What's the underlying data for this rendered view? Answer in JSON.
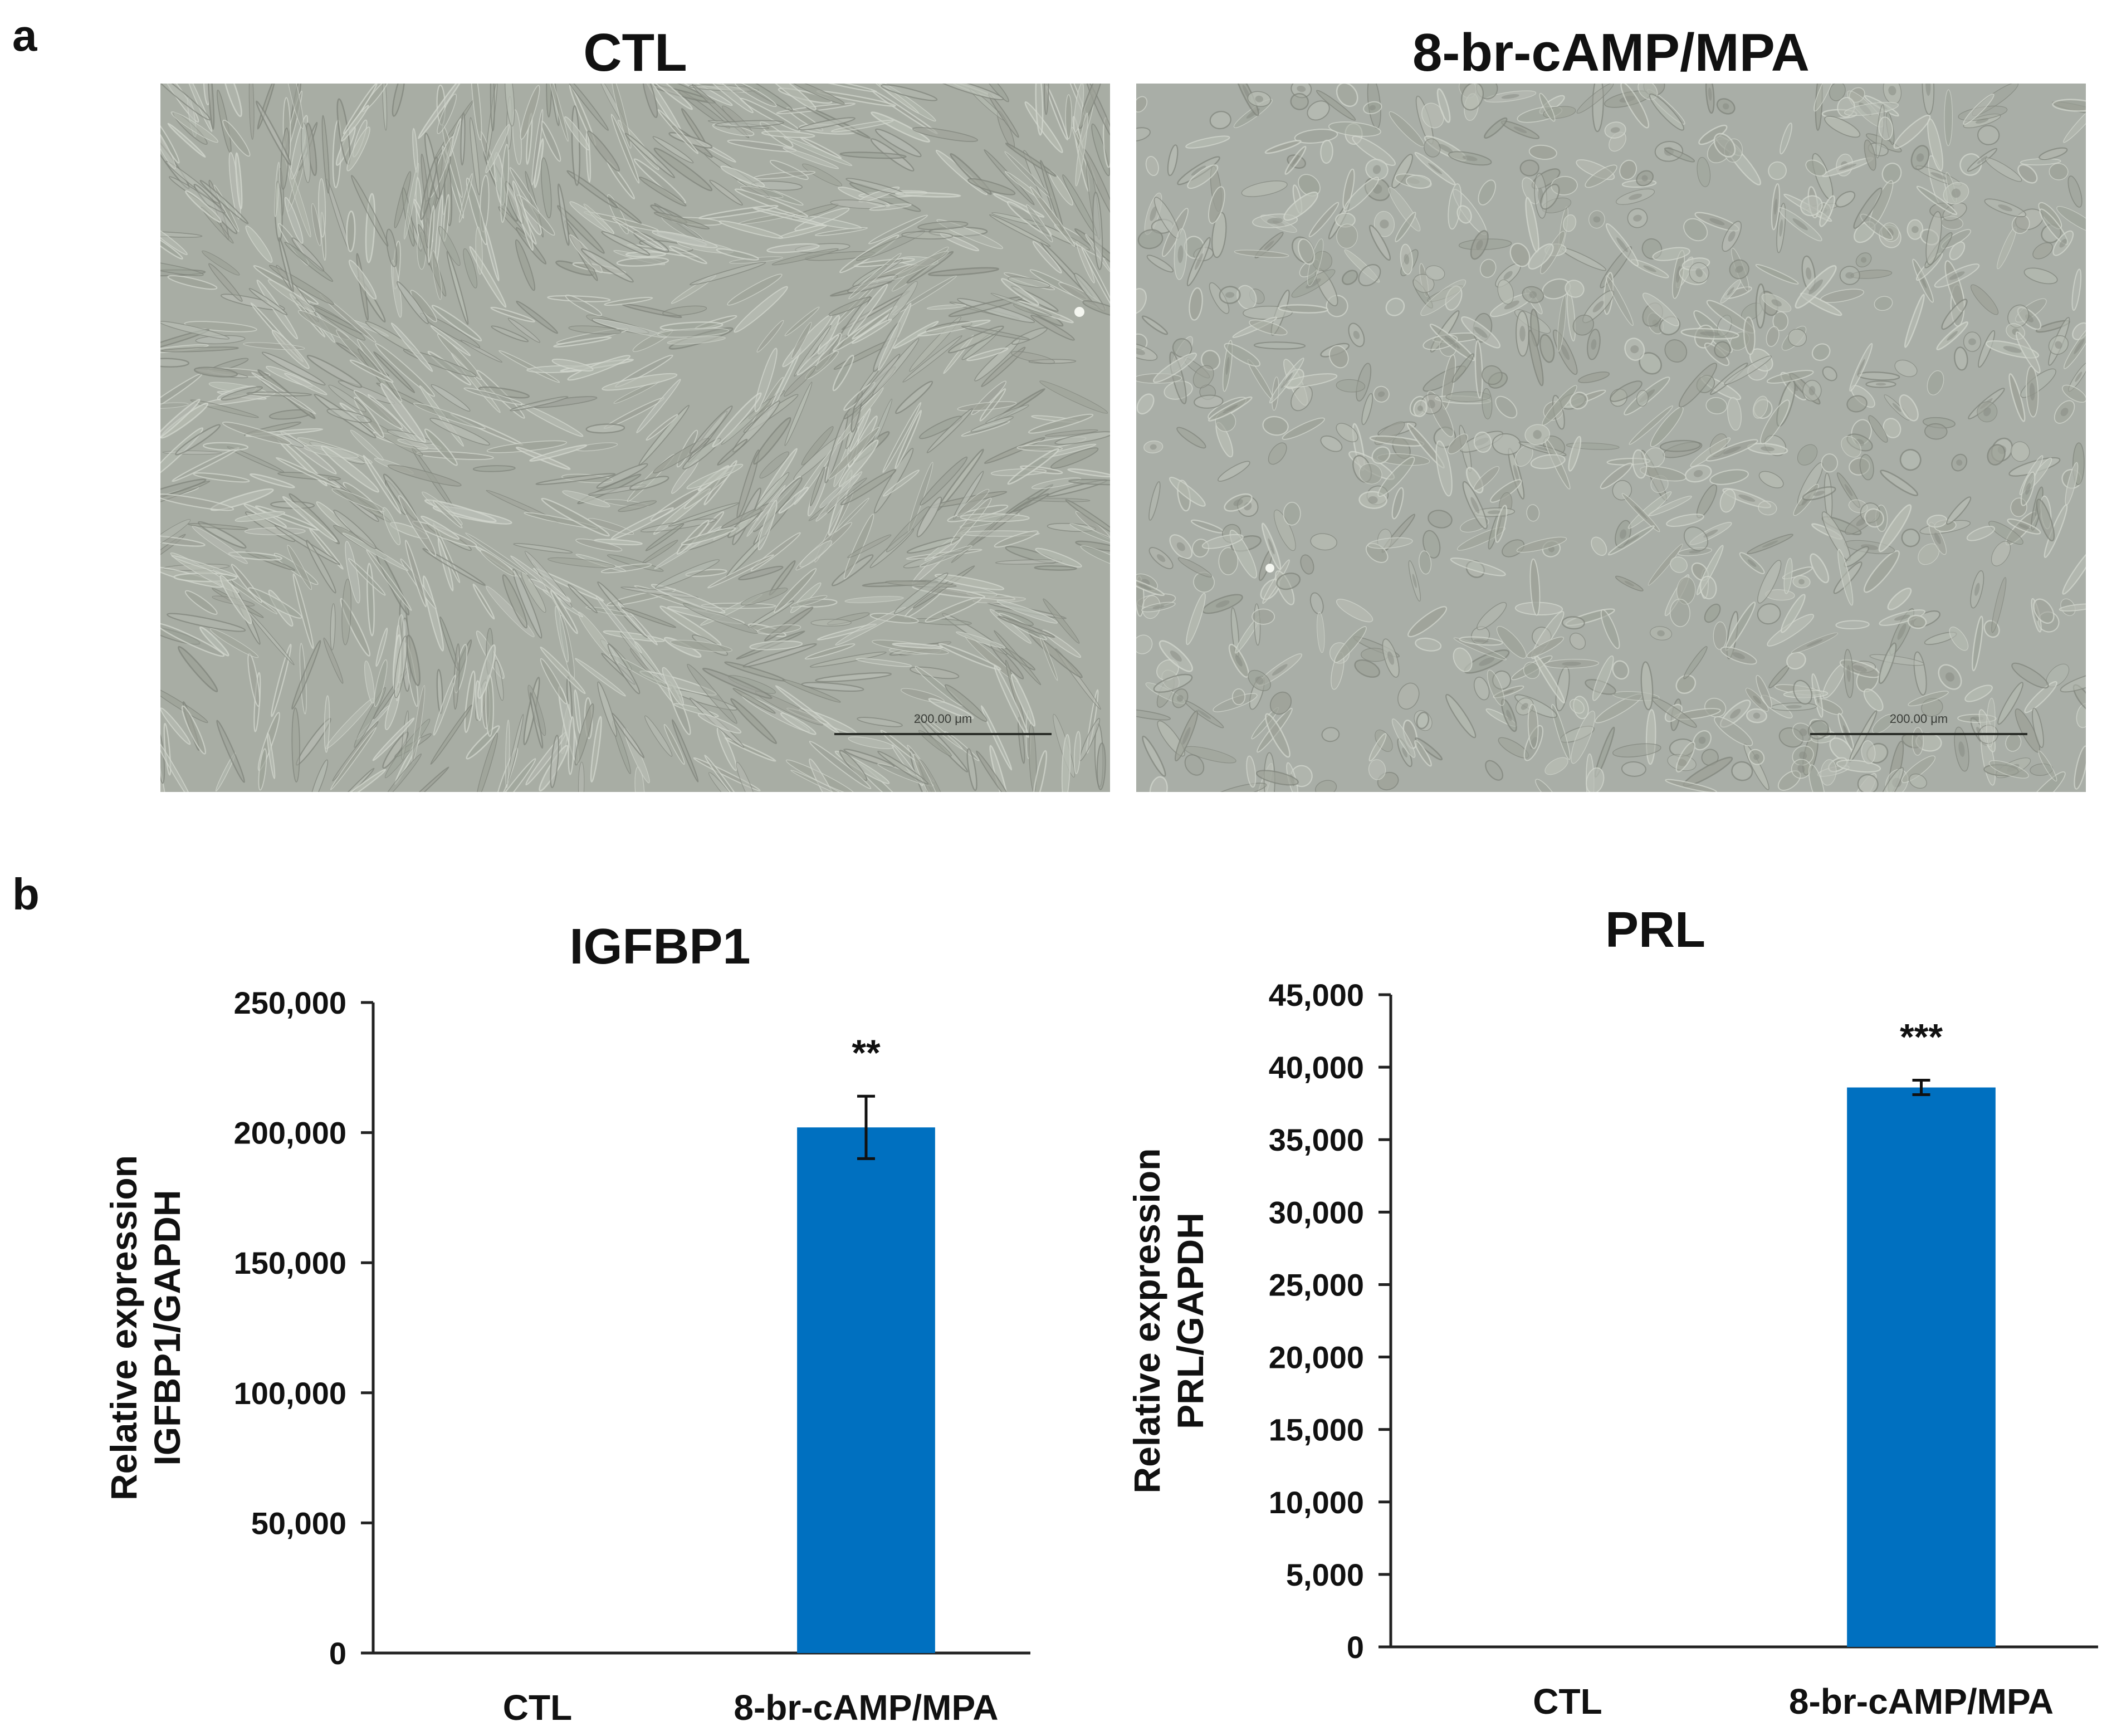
{
  "figure": {
    "panel_a_label": "a",
    "panel_b_label": "b",
    "micrographs": [
      {
        "title": "CTL",
        "scale_bar_text": "200.00 μm",
        "morphology": "spindle"
      },
      {
        "title": "8-br-cAMP/MPA",
        "scale_bar_text": "200.00 μm",
        "morphology": "rounded"
      }
    ]
  },
  "chart_data": [
    {
      "type": "bar",
      "title": "IGFBP1",
      "ylabel": [
        "Relative expression",
        "IGFBP1/GAPDH"
      ],
      "categories": [
        "CTL",
        "8-br-cAMP/MPA"
      ],
      "values": [
        0,
        202000
      ],
      "errors": [
        0,
        12000
      ],
      "significance": [
        "",
        "**"
      ],
      "ylim": [
        0,
        250000
      ],
      "yticks": [
        0,
        50000,
        100000,
        150000,
        200000,
        250000
      ],
      "ytick_labels": [
        "0",
        "50,000",
        "100,000",
        "150,000",
        "200,000",
        "250,000"
      ],
      "bar_color": "#0070C0",
      "grid": false
    },
    {
      "type": "bar",
      "title": "PRL",
      "ylabel": [
        "Relative expression",
        "PRL/GAPDH"
      ],
      "categories": [
        "CTL",
        "8-br-cAMP/MPA"
      ],
      "values": [
        0,
        38600
      ],
      "errors": [
        0,
        500
      ],
      "significance": [
        "",
        "***"
      ],
      "ylim": [
        0,
        45000
      ],
      "yticks": [
        0,
        5000,
        10000,
        15000,
        20000,
        25000,
        30000,
        35000,
        40000,
        45000
      ],
      "ytick_labels": [
        "0",
        "5,000",
        "10,000",
        "15,000",
        "20,000",
        "25,000",
        "30,000",
        "35,000",
        "40,000",
        "45,000"
      ],
      "bar_color": "#0070C0",
      "grid": false
    }
  ]
}
